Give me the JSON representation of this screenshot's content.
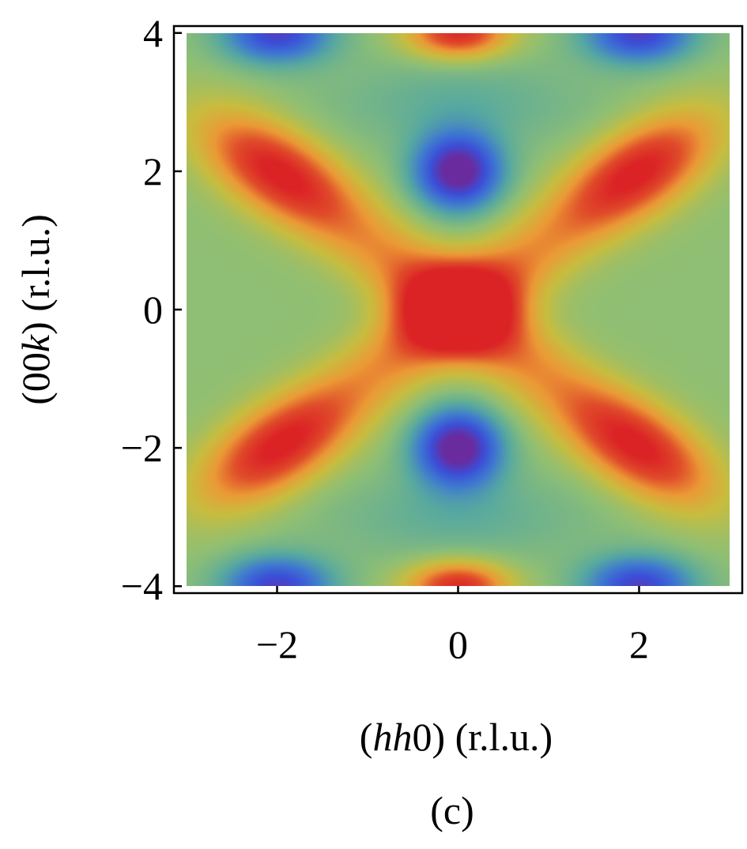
{
  "chart_data": {
    "type": "heatmap",
    "xlabel_parts": [
      "(",
      "hh",
      "0) (r.l.u.)"
    ],
    "ylabel_parts": [
      "(00",
      "k",
      ") (r.l.u.)"
    ],
    "panel_label": "(c)",
    "xlim": [
      -3.14,
      3.14
    ],
    "ylim": [
      -4.1,
      4.1
    ],
    "data_extent": {
      "x": [
        -3.0,
        3.0
      ],
      "y": [
        -4.0,
        4.0
      ]
    },
    "x_ticks": [
      -2,
      0,
      2
    ],
    "y_ticks": [
      -4,
      -2,
      0,
      2,
      4
    ],
    "x_tick_labels": [
      "−2",
      "0",
      "2"
    ],
    "y_tick_labels": [
      "−4",
      "−2",
      "0",
      "2",
      "4"
    ],
    "colormap": [
      "#6a2b9e",
      "#3b4fd8",
      "#3f7ad0",
      "#57a9a0",
      "#8fbf74",
      "#c8bd3f",
      "#eb9a36",
      "#e04d2a",
      "#db2326"
    ],
    "features": [
      {
        "kind": "maximum",
        "x": 0,
        "y": 0,
        "level": "high"
      },
      {
        "kind": "maximum",
        "x": 0,
        "y": 4,
        "level": "high"
      },
      {
        "kind": "maximum",
        "x": 0,
        "y": -4,
        "level": "high"
      },
      {
        "kind": "maximum",
        "x": -2,
        "y": 2,
        "level": "high"
      },
      {
        "kind": "maximum",
        "x": 2,
        "y": 2,
        "level": "high"
      },
      {
        "kind": "maximum",
        "x": -2,
        "y": -2,
        "level": "high"
      },
      {
        "kind": "maximum",
        "x": 2,
        "y": -2,
        "level": "high"
      },
      {
        "kind": "minimum",
        "x": 0,
        "y": 2,
        "level": "low"
      },
      {
        "kind": "minimum",
        "x": 0,
        "y": -2,
        "level": "low"
      },
      {
        "kind": "minimum",
        "x": -2,
        "y": 4,
        "level": "low"
      },
      {
        "kind": "minimum",
        "x": 2,
        "y": 4,
        "level": "low"
      },
      {
        "kind": "minimum",
        "x": -2,
        "y": -4,
        "level": "low"
      },
      {
        "kind": "minimum",
        "x": 2,
        "y": -4,
        "level": "low"
      }
    ],
    "grid": false,
    "legend": "none"
  }
}
